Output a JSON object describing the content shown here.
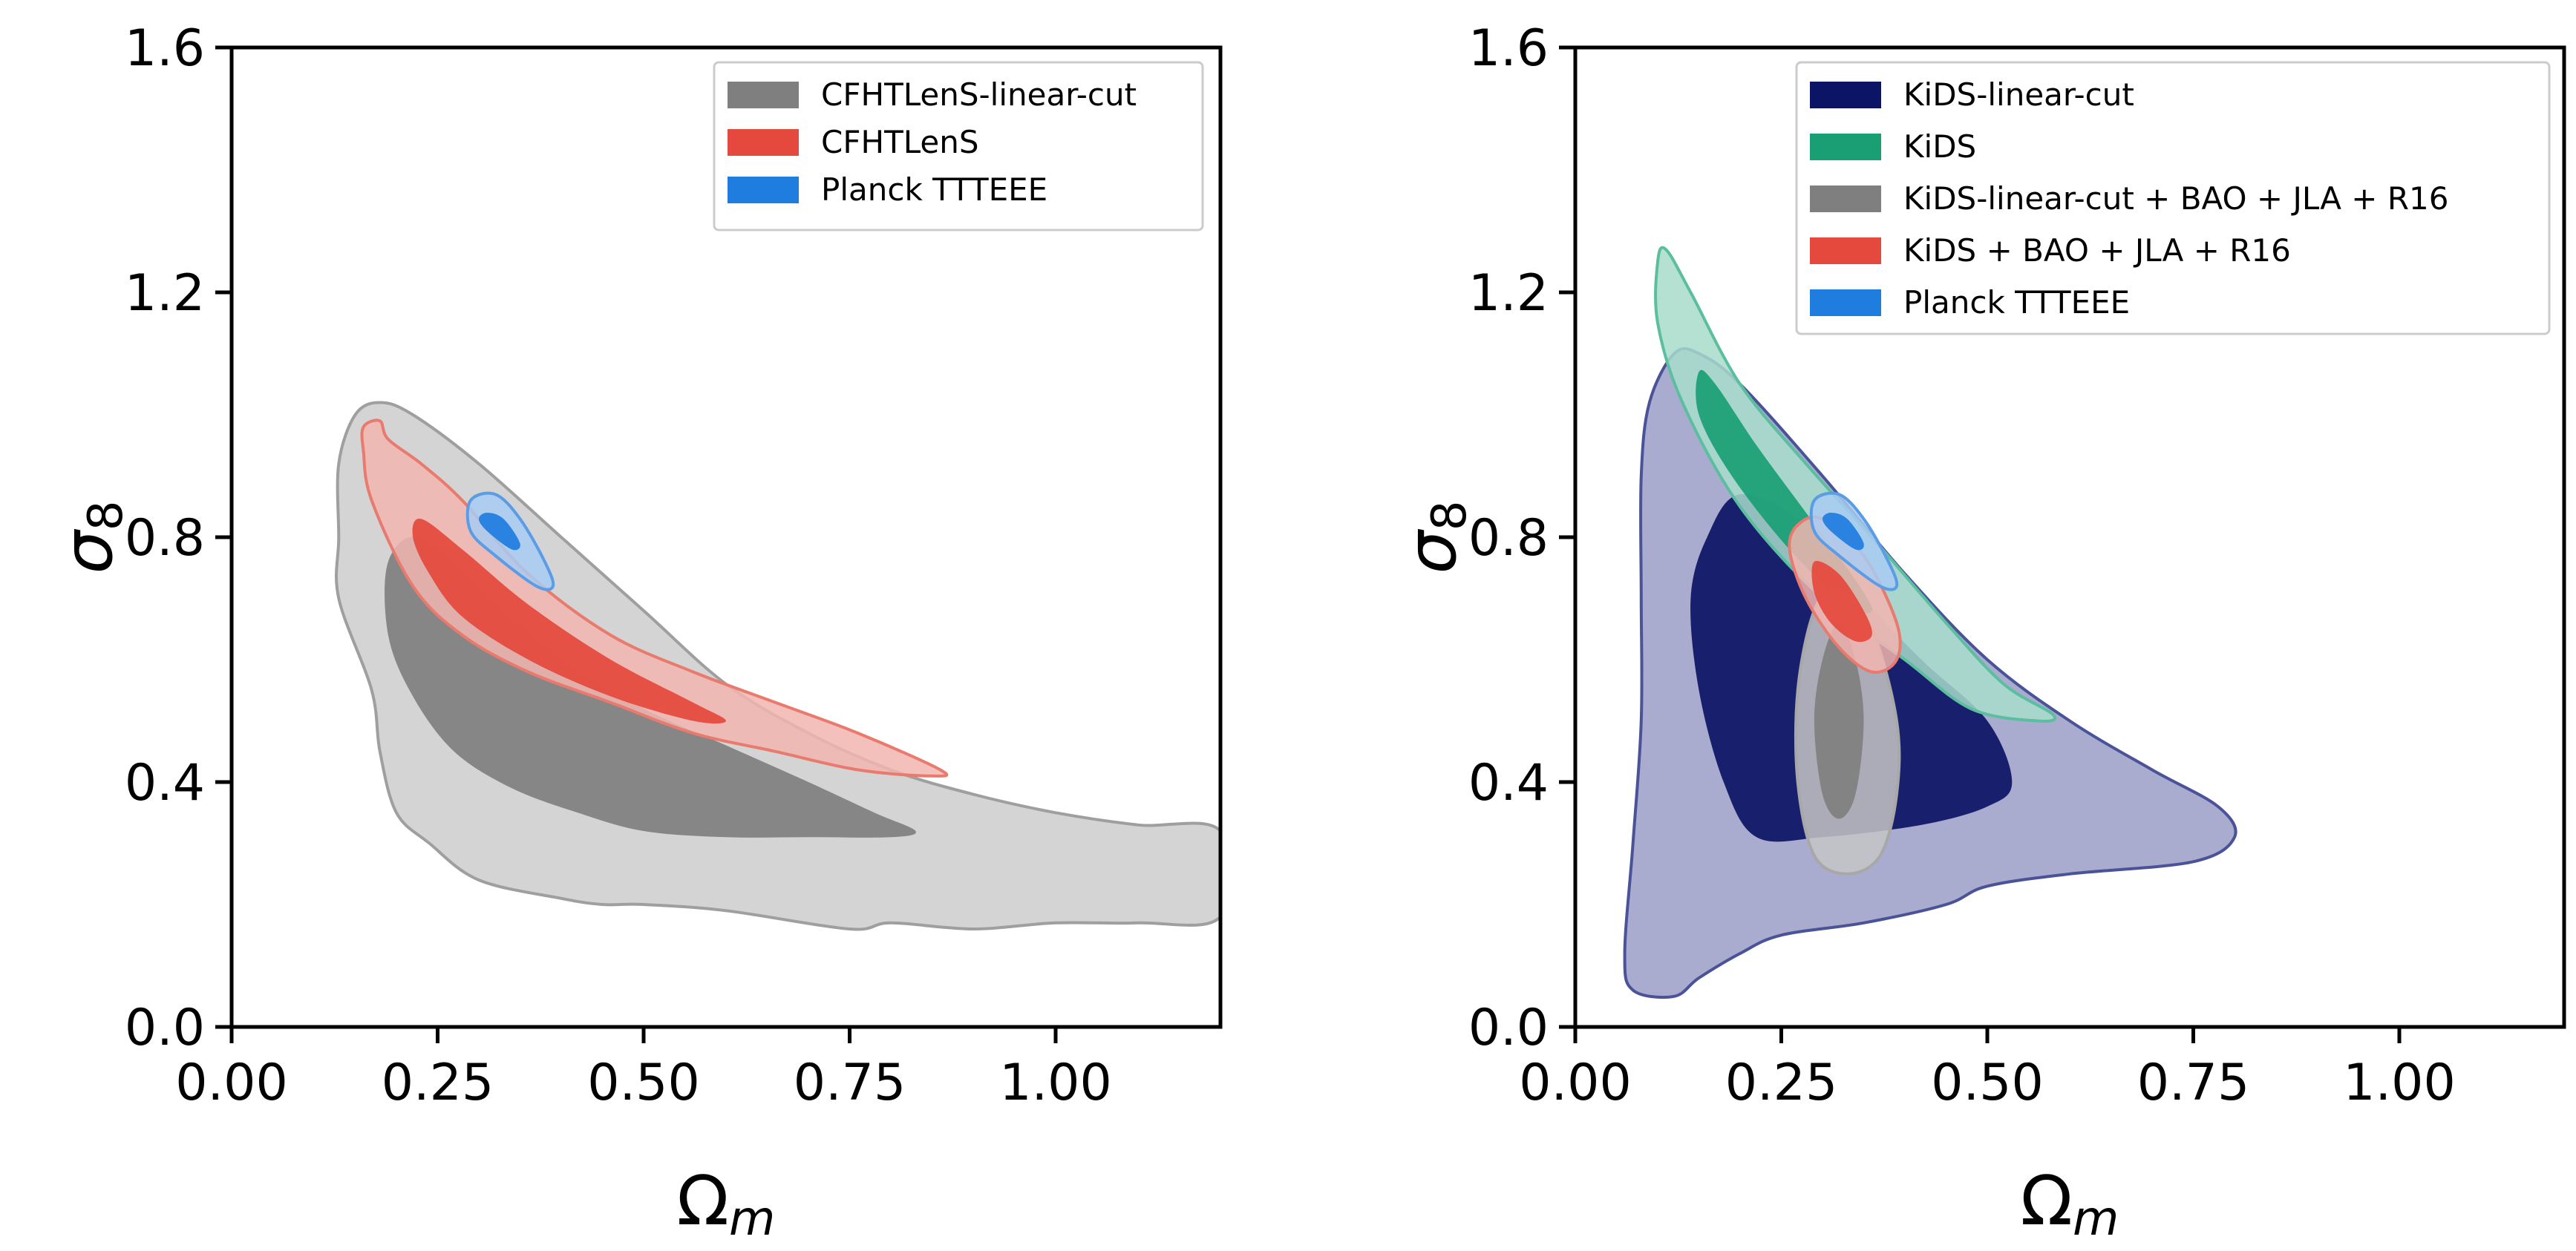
{
  "chart_data": [
    {
      "type": "contour",
      "title": "",
      "xlabel": "Ω",
      "xlabel_sub": "m",
      "ylabel": "σ",
      "ylabel_sub": "8",
      "xlim": [
        0.0,
        1.2
      ],
      "ylim": [
        0.0,
        1.6
      ],
      "xticks": [
        "0.00",
        "0.25",
        "0.50",
        "0.75",
        "1.00"
      ],
      "yticks": [
        "0.0",
        "0.4",
        "0.8",
        "1.2",
        "1.6"
      ],
      "legend_position": "top-right",
      "series": [
        {
          "name": "CFHTLenS-linear-cut",
          "color": "#7f7f7f",
          "outer_color": "#cccccc",
          "edge_color": "#9f9f9f",
          "contours": {
            "outer": [
              [
                0.15,
                1.0
              ],
              [
                0.18,
                1.02
              ],
              [
                0.22,
                1.0
              ],
              [
                0.3,
                0.92
              ],
              [
                0.4,
                0.8
              ],
              [
                0.5,
                0.68
              ],
              [
                0.6,
                0.56
              ],
              [
                0.7,
                0.48
              ],
              [
                0.8,
                0.42
              ],
              [
                0.9,
                0.38
              ],
              [
                1.0,
                0.35
              ],
              [
                1.1,
                0.33
              ],
              [
                1.2,
                0.32
              ],
              [
                1.2,
                0.18
              ],
              [
                1.1,
                0.17
              ],
              [
                1.0,
                0.17
              ],
              [
                0.9,
                0.16
              ],
              [
                0.8,
                0.17
              ],
              [
                0.75,
                0.16
              ],
              [
                0.6,
                0.19
              ],
              [
                0.5,
                0.2
              ],
              [
                0.45,
                0.2
              ],
              [
                0.4,
                0.21
              ],
              [
                0.3,
                0.24
              ],
              [
                0.24,
                0.3
              ],
              [
                0.2,
                0.35
              ],
              [
                0.18,
                0.45
              ],
              [
                0.17,
                0.55
              ],
              [
                0.13,
                0.7
              ],
              [
                0.13,
                0.8
              ],
              [
                0.13,
                0.92
              ]
            ],
            "inner": [
              [
                0.19,
                0.76
              ],
              [
                0.23,
                0.8
              ],
              [
                0.3,
                0.72
              ],
              [
                0.4,
                0.6
              ],
              [
                0.5,
                0.52
              ],
              [
                0.6,
                0.46
              ],
              [
                0.7,
                0.4
              ],
              [
                0.78,
                0.35
              ],
              [
                0.83,
                0.32
              ],
              [
                0.8,
                0.31
              ],
              [
                0.7,
                0.31
              ],
              [
                0.6,
                0.31
              ],
              [
                0.5,
                0.32
              ],
              [
                0.42,
                0.35
              ],
              [
                0.34,
                0.39
              ],
              [
                0.27,
                0.45
              ],
              [
                0.22,
                0.54
              ],
              [
                0.19,
                0.64
              ]
            ]
          }
        },
        {
          "name": "CFHTLenS",
          "color": "#e5483c",
          "outer_color": "#f2b5b0",
          "edge_color": "#e87a6e",
          "contours": {
            "outer": [
              [
                0.16,
                0.98
              ],
              [
                0.18,
                0.99
              ],
              [
                0.19,
                0.96
              ],
              [
                0.23,
                0.92
              ],
              [
                0.28,
                0.86
              ],
              [
                0.36,
                0.74
              ],
              [
                0.46,
                0.64
              ],
              [
                0.56,
                0.58
              ],
              [
                0.66,
                0.53
              ],
              [
                0.76,
                0.48
              ],
              [
                0.86,
                0.42
              ],
              [
                0.85,
                0.41
              ],
              [
                0.76,
                0.42
              ],
              [
                0.66,
                0.45
              ],
              [
                0.56,
                0.48
              ],
              [
                0.46,
                0.53
              ],
              [
                0.36,
                0.58
              ],
              [
                0.28,
                0.64
              ],
              [
                0.22,
                0.72
              ],
              [
                0.17,
                0.86
              ],
              [
                0.16,
                0.94
              ]
            ],
            "inner": [
              [
                0.23,
                0.83
              ],
              [
                0.28,
                0.78
              ],
              [
                0.36,
                0.69
              ],
              [
                0.46,
                0.6
              ],
              [
                0.56,
                0.53
              ],
              [
                0.6,
                0.5
              ],
              [
                0.56,
                0.5
              ],
              [
                0.46,
                0.54
              ],
              [
                0.36,
                0.6
              ],
              [
                0.28,
                0.67
              ],
              [
                0.24,
                0.74
              ],
              [
                0.22,
                0.8
              ]
            ]
          }
        },
        {
          "name": "Planck TTTEEE",
          "color": "#1f7de0",
          "outer_color": "#a8cbf2",
          "edge_color": "#5b9ce6",
          "contours": {
            "outer": [
              [
                0.29,
                0.86
              ],
              [
                0.32,
                0.87
              ],
              [
                0.35,
                0.83
              ],
              [
                0.38,
                0.76
              ],
              [
                0.39,
                0.72
              ],
              [
                0.37,
                0.72
              ],
              [
                0.32,
                0.77
              ],
              [
                0.29,
                0.81
              ]
            ],
            "inner": [
              [
                0.31,
                0.84
              ],
              [
                0.33,
                0.83
              ],
              [
                0.35,
                0.79
              ],
              [
                0.34,
                0.78
              ],
              [
                0.31,
                0.81
              ],
              [
                0.3,
                0.83
              ]
            ]
          }
        }
      ]
    },
    {
      "type": "contour",
      "title": "",
      "xlabel": "Ω",
      "xlabel_sub": "m",
      "ylabel": "σ",
      "ylabel_sub": "8",
      "xlim": [
        0.0,
        1.2
      ],
      "ylim": [
        0.0,
        1.6
      ],
      "xticks": [
        "0.00",
        "0.25",
        "0.50",
        "0.75",
        "1.00"
      ],
      "yticks": [
        "0.0",
        "0.4",
        "0.8",
        "1.2",
        "1.6"
      ],
      "legend_position": "top-right",
      "series": [
        {
          "name": "KiDS-linear-cut",
          "color": "#0c1466",
          "outer_color": "#9a9ec6",
          "edge_color": "#4a5298",
          "contours": {
            "outer": [
              [
                0.09,
                1.02
              ],
              [
                0.12,
                1.1
              ],
              [
                0.15,
                1.1
              ],
              [
                0.2,
                1.05
              ],
              [
                0.3,
                0.9
              ],
              [
                0.4,
                0.74
              ],
              [
                0.5,
                0.6
              ],
              [
                0.6,
                0.5
              ],
              [
                0.7,
                0.42
              ],
              [
                0.78,
                0.36
              ],
              [
                0.8,
                0.31
              ],
              [
                0.75,
                0.27
              ],
              [
                0.6,
                0.25
              ],
              [
                0.5,
                0.23
              ],
              [
                0.45,
                0.2
              ],
              [
                0.35,
                0.17
              ],
              [
                0.25,
                0.15
              ],
              [
                0.2,
                0.12
              ],
              [
                0.15,
                0.08
              ],
              [
                0.12,
                0.05
              ],
              [
                0.07,
                0.06
              ],
              [
                0.06,
                0.12
              ],
              [
                0.07,
                0.3
              ],
              [
                0.08,
                0.5
              ],
              [
                0.08,
                0.7
              ],
              [
                0.08,
                0.9
              ]
            ],
            "inner": [
              [
                0.16,
                0.8
              ],
              [
                0.2,
                0.87
              ],
              [
                0.28,
                0.82
              ],
              [
                0.35,
                0.7
              ],
              [
                0.42,
                0.6
              ],
              [
                0.5,
                0.5
              ],
              [
                0.53,
                0.4
              ],
              [
                0.5,
                0.36
              ],
              [
                0.42,
                0.33
              ],
              [
                0.3,
                0.31
              ],
              [
                0.22,
                0.31
              ],
              [
                0.18,
                0.4
              ],
              [
                0.15,
                0.55
              ],
              [
                0.14,
                0.7
              ]
            ]
          }
        },
        {
          "name": "KiDS",
          "color": "#1a9e74",
          "outer_color": "#a8dccb",
          "edge_color": "#5bbf9f",
          "contours": {
            "outer": [
              [
                0.1,
                1.25
              ],
              [
                0.11,
                1.27
              ],
              [
                0.14,
                1.2
              ],
              [
                0.2,
                1.05
              ],
              [
                0.28,
                0.92
              ],
              [
                0.36,
                0.8
              ],
              [
                0.45,
                0.66
              ],
              [
                0.52,
                0.56
              ],
              [
                0.58,
                0.51
              ],
              [
                0.56,
                0.5
              ],
              [
                0.48,
                0.52
              ],
              [
                0.4,
                0.6
              ],
              [
                0.3,
                0.7
              ],
              [
                0.2,
                0.85
              ],
              [
                0.13,
                1.02
              ],
              [
                0.1,
                1.15
              ]
            ],
            "inner": [
              [
                0.15,
                1.07
              ],
              [
                0.17,
                1.05
              ],
              [
                0.22,
                0.95
              ],
              [
                0.28,
                0.84
              ],
              [
                0.34,
                0.73
              ],
              [
                0.36,
                0.68
              ],
              [
                0.33,
                0.69
              ],
              [
                0.26,
                0.78
              ],
              [
                0.19,
                0.9
              ],
              [
                0.15,
                1.0
              ]
            ]
          }
        },
        {
          "name": "KiDS-linear-cut + BAO + JLA + R16",
          "color": "#7f7f7f",
          "outer_color": "#c6c6c6",
          "edge_color": "#a8a8a8",
          "contours": {
            "outer": [
              [
                0.32,
                0.72
              ],
              [
                0.36,
                0.65
              ],
              [
                0.39,
                0.5
              ],
              [
                0.39,
                0.38
              ],
              [
                0.37,
                0.28
              ],
              [
                0.33,
                0.25
              ],
              [
                0.29,
                0.28
              ],
              [
                0.27,
                0.4
              ],
              [
                0.27,
                0.55
              ],
              [
                0.29,
                0.68
              ]
            ],
            "inner": [
              [
                0.32,
                0.66
              ],
              [
                0.34,
                0.6
              ],
              [
                0.35,
                0.5
              ],
              [
                0.34,
                0.38
              ],
              [
                0.32,
                0.34
              ],
              [
                0.3,
                0.38
              ],
              [
                0.29,
                0.5
              ],
              [
                0.3,
                0.6
              ]
            ]
          }
        },
        {
          "name": "KiDS + BAO + JLA + R16",
          "color": "#e5483c",
          "outer_color": "#f2b5b0",
          "edge_color": "#e87a6e",
          "contours": {
            "outer": [
              [
                0.27,
                0.82
              ],
              [
                0.3,
                0.83
              ],
              [
                0.35,
                0.77
              ],
              [
                0.39,
                0.66
              ],
              [
                0.39,
                0.6
              ],
              [
                0.36,
                0.58
              ],
              [
                0.32,
                0.62
              ],
              [
                0.28,
                0.7
              ],
              [
                0.26,
                0.78
              ]
            ],
            "inner": [
              [
                0.29,
                0.76
              ],
              [
                0.32,
                0.74
              ],
              [
                0.35,
                0.68
              ],
              [
                0.36,
                0.64
              ],
              [
                0.34,
                0.63
              ],
              [
                0.31,
                0.66
              ],
              [
                0.29,
                0.71
              ]
            ]
          }
        },
        {
          "name": "Planck TTTEEE",
          "color": "#1f7de0",
          "outer_color": "#a8cbf2",
          "edge_color": "#5b9ce6",
          "contours": {
            "outer": [
              [
                0.29,
                0.86
              ],
              [
                0.32,
                0.87
              ],
              [
                0.35,
                0.83
              ],
              [
                0.38,
                0.76
              ],
              [
                0.39,
                0.72
              ],
              [
                0.37,
                0.72
              ],
              [
                0.32,
                0.77
              ],
              [
                0.29,
                0.81
              ]
            ],
            "inner": [
              [
                0.31,
                0.84
              ],
              [
                0.33,
                0.83
              ],
              [
                0.35,
                0.79
              ],
              [
                0.34,
                0.78
              ],
              [
                0.31,
                0.81
              ],
              [
                0.3,
                0.83
              ]
            ]
          }
        }
      ]
    }
  ]
}
